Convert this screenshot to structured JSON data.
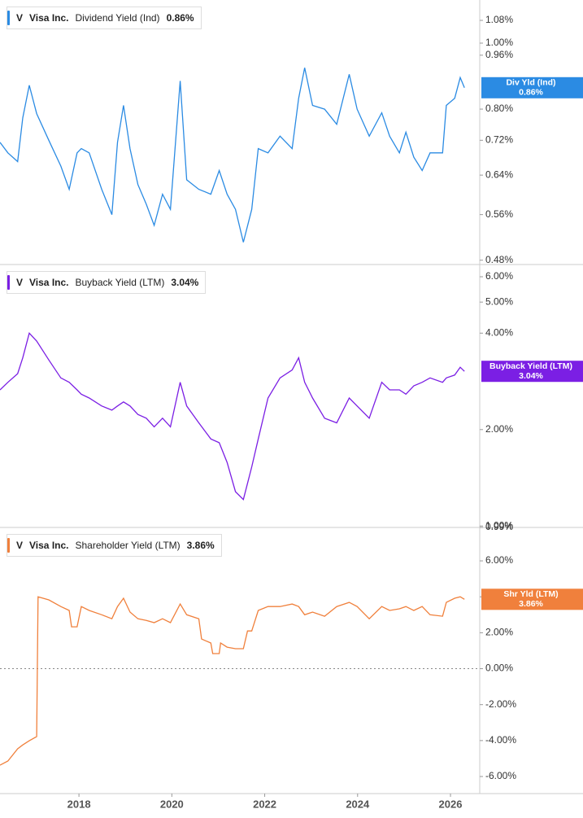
{
  "chart_data": [
    {
      "type": "line",
      "ticker": "V",
      "company": "Visa Inc.",
      "tag_label": "Div Yld (Ind)",
      "last_value_label": "0.86%",
      "log_scale": true,
      "x": [
        2016.3,
        2016.47,
        2016.68,
        2016.79,
        2016.93,
        2017.09,
        2017.35,
        2017.61,
        2017.79,
        2017.96,
        2018.05,
        2018.22,
        2018.49,
        2018.71,
        2018.83,
        2018.96,
        2019.1,
        2019.27,
        2019.45,
        2019.62,
        2019.8,
        2019.97,
        2020.18,
        2020.32,
        2020.58,
        2020.84,
        2021.02,
        2021.19,
        2021.37,
        2021.54,
        2021.72,
        2021.86,
        2022.07,
        2022.33,
        2022.59,
        2022.73,
        2022.86,
        2023.03,
        2023.29,
        2023.55,
        2023.82,
        2023.99,
        2024.25,
        2024.52,
        2024.69,
        2024.9,
        2025.04,
        2025.21,
        2025.39,
        2025.56,
        2025.83,
        2025.91,
        2026.09,
        2026.21,
        2026.3
      ],
      "series": [
        {
          "name": "Dividend Yield (Ind)",
          "color": "#2b8be3",
          "values": [
            0.715,
            0.69,
            0.67,
            0.777,
            0.867,
            0.788,
            0.72,
            0.66,
            0.61,
            0.69,
            0.7,
            0.69,
            0.61,
            0.56,
            0.715,
            0.81,
            0.7,
            0.62,
            0.58,
            0.54,
            0.6,
            0.57,
            0.88,
            0.63,
            0.61,
            0.6,
            0.65,
            0.6,
            0.57,
            0.51,
            0.57,
            0.7,
            0.69,
            0.73,
            0.7,
            0.83,
            0.92,
            0.81,
            0.8,
            0.76,
            0.9,
            0.8,
            0.73,
            0.79,
            0.73,
            0.69,
            0.74,
            0.68,
            0.65,
            0.69,
            0.69,
            0.81,
            0.83,
            0.89,
            0.86
          ]
        }
      ],
      "xlim": [
        2016.3,
        2026.63
      ],
      "ylim": [
        0.473,
        1.157
      ],
      "yticks": [
        {
          "value": 1.08,
          "label": "1.08%"
        },
        {
          "value": 1.0,
          "label": "1.00%"
        },
        {
          "value": 0.96,
          "label": "0.96%"
        },
        {
          "value": 0.8,
          "label": "0.80%"
        },
        {
          "value": 0.72,
          "label": "0.72%"
        },
        {
          "value": 0.64,
          "label": "0.64%"
        },
        {
          "value": 0.56,
          "label": "0.56%"
        },
        {
          "value": 0.48,
          "label": "0.48%"
        }
      ]
    },
    {
      "type": "line",
      "ticker": "V",
      "company": "Visa Inc.",
      "tag_label": "Buyback Yield (LTM)",
      "last_value_label": "3.04%",
      "log_scale": true,
      "x": [
        2016.3,
        2016.47,
        2016.68,
        2016.79,
        2016.93,
        2017.09,
        2017.35,
        2017.61,
        2017.79,
        2017.96,
        2018.05,
        2018.22,
        2018.49,
        2018.71,
        2018.83,
        2018.96,
        2019.1,
        2019.27,
        2019.45,
        2019.62,
        2019.8,
        2019.97,
        2020.18,
        2020.32,
        2020.58,
        2020.84,
        2021.02,
        2021.19,
        2021.37,
        2021.54,
        2021.72,
        2021.86,
        2022.07,
        2022.33,
        2022.59,
        2022.73,
        2022.86,
        2023.03,
        2023.29,
        2023.55,
        2023.82,
        2023.99,
        2024.25,
        2024.52,
        2024.69,
        2024.9,
        2025.04,
        2025.21,
        2025.39,
        2025.56,
        2025.83,
        2025.91,
        2026.09,
        2026.21,
        2026.3
      ],
      "series": [
        {
          "name": "Buyback Yield (LTM)",
          "color": "#7b1fe4",
          "values": [
            2.66,
            2.81,
            2.99,
            3.35,
            4.0,
            3.78,
            3.3,
            2.9,
            2.81,
            2.66,
            2.58,
            2.51,
            2.37,
            2.3,
            2.37,
            2.44,
            2.37,
            2.23,
            2.17,
            2.04,
            2.17,
            2.04,
            2.81,
            2.37,
            2.1,
            1.87,
            1.82,
            1.58,
            1.28,
            1.21,
            1.53,
            1.87,
            2.51,
            2.9,
            3.07,
            3.35,
            2.81,
            2.51,
            2.17,
            2.1,
            2.51,
            2.37,
            2.17,
            2.81,
            2.66,
            2.66,
            2.58,
            2.74,
            2.81,
            2.9,
            2.81,
            2.9,
            2.96,
            3.13,
            3.04
          ]
        }
      ],
      "xlim": [
        2016.3,
        2026.63
      ],
      "ylim": [
        0.99,
        6.55
      ],
      "yticks": [
        {
          "value": 6,
          "label": "6.00%"
        },
        {
          "value": 5,
          "label": "5.00%"
        },
        {
          "value": 4,
          "label": "4.00%"
        },
        {
          "value": 2,
          "label": "2.00%"
        },
        {
          "value": 1,
          "label": "1.00%"
        },
        {
          "value": 0.99,
          "label": "0.99%"
        }
      ]
    },
    {
      "type": "line",
      "ticker": "V",
      "company": "Visa Inc.",
      "tag_label": "Shr Yld (LTM)",
      "last_value_label": "3.86%",
      "log_scale": false,
      "zero_line": true,
      "x": [
        2016.3,
        2016.47,
        2016.68,
        2016.79,
        2016.93,
        2017.09,
        2017.12,
        2017.35,
        2017.61,
        2017.79,
        2017.84,
        2017.96,
        2018.05,
        2018.22,
        2018.49,
        2018.71,
        2018.83,
        2018.96,
        2019.1,
        2019.27,
        2019.45,
        2019.62,
        2019.8,
        2019.97,
        2020.18,
        2020.32,
        2020.58,
        2020.64,
        2020.84,
        2020.88,
        2021.02,
        2021.05,
        2021.19,
        2021.37,
        2021.54,
        2021.63,
        2021.72,
        2021.86,
        2022.07,
        2022.33,
        2022.59,
        2022.73,
        2022.86,
        2023.03,
        2023.29,
        2023.55,
        2023.82,
        2023.99,
        2024.25,
        2024.52,
        2024.69,
        2024.9,
        2025.04,
        2025.21,
        2025.39,
        2025.56,
        2025.83,
        2025.91,
        2026.09,
        2026.21,
        2026.3
      ],
      "series": [
        {
          "name": "Shareholder Yield (LTM)",
          "color": "#f0803c",
          "values": [
            -5.37,
            -5.14,
            -4.46,
            -4.24,
            -4.01,
            -3.78,
            4.0,
            3.83,
            3.46,
            3.24,
            2.33,
            2.33,
            3.46,
            3.24,
            3.0,
            2.78,
            3.46,
            3.92,
            3.15,
            2.78,
            2.69,
            2.56,
            2.78,
            2.56,
            3.6,
            3.0,
            2.78,
            1.65,
            1.43,
            0.84,
            0.84,
            1.43,
            1.2,
            1.11,
            1.11,
            2.1,
            2.1,
            3.24,
            3.46,
            3.46,
            3.6,
            3.46,
            3.0,
            3.15,
            2.92,
            3.46,
            3.69,
            3.46,
            2.78,
            3.46,
            3.24,
            3.33,
            3.46,
            3.24,
            3.46,
            3.0,
            2.92,
            3.69,
            3.92,
            4.0,
            3.86
          ]
        }
      ],
      "xlim": [
        2016.3,
        2026.63
      ],
      "ylim": [
        -6.95,
        7.86
      ],
      "xticks": [
        2018,
        2020,
        2022,
        2024,
        2026
      ],
      "yticks": [
        {
          "value": 6,
          "label": "6.00%"
        },
        {
          "value": 4,
          "label": "4.00%"
        },
        {
          "value": 2,
          "label": "2.00%"
        },
        {
          "value": 0,
          "label": "0.00%"
        },
        {
          "value": -2,
          "label": "-2.00%"
        },
        {
          "value": -4,
          "label": "-4.00%"
        },
        {
          "value": -6,
          "label": "-6.00%"
        }
      ]
    }
  ]
}
